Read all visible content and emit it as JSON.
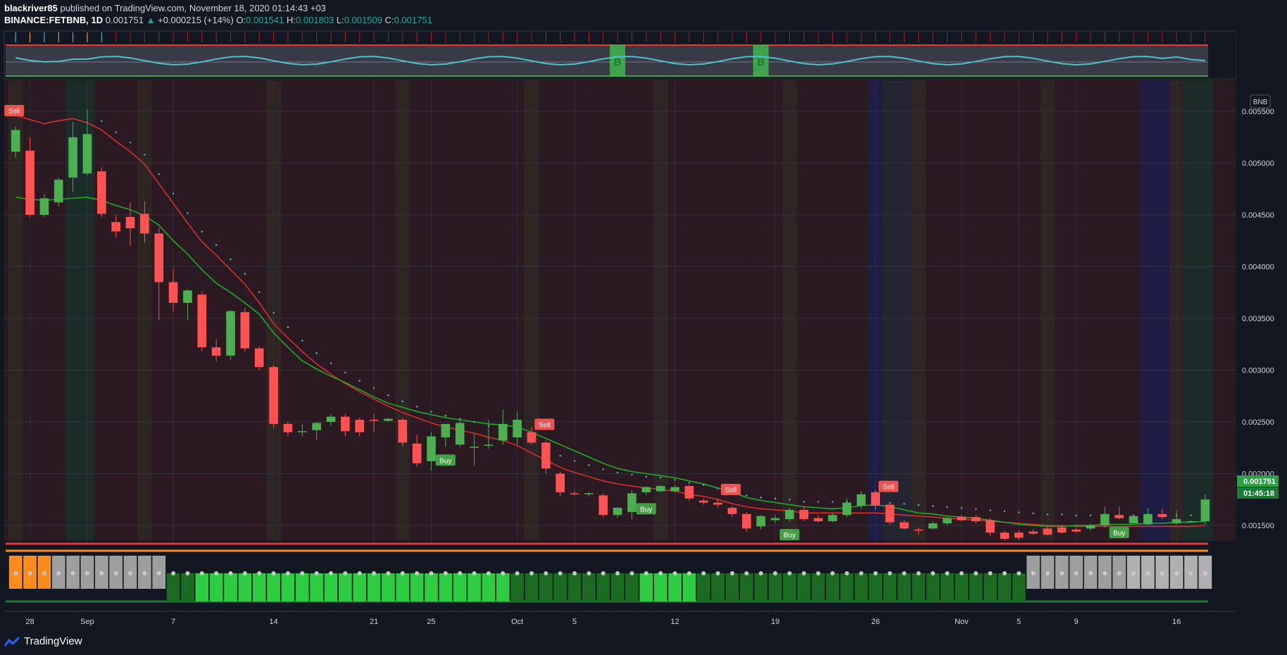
{
  "header": {
    "publisher": "blackriver85",
    "published_text": "published on TradingView.com, November 18, 2020 01:14:43 +03",
    "symbol": "BINANCE:FETBNB, 1D",
    "last": "0.001751",
    "change_arrow": "▲",
    "change": "+0.000215 (+14%)",
    "o_label": "O:",
    "o": "0.001541",
    "h_label": "H:",
    "h": "0.001803",
    "l_label": "L:",
    "l": "0.001509",
    "c_label": "C:",
    "c": "0.001751"
  },
  "currency_badge": "BNB",
  "price_label": "0.001751",
  "countdown_label": "01:45:18",
  "branding": "TradingView",
  "colors": {
    "up": "#26a69a",
    "bull_candle": "#4caf50",
    "bear_candle": "#ff5252",
    "ma_fast": "#21a82a",
    "ma_slow": "#d32f2f",
    "sell_marker": "#ef5350",
    "buy_marker": "#43a047",
    "oscillator": "#4dc3c9"
  },
  "chart_data": {
    "type": "candlestick",
    "ylim": [
      0.00135,
      0.0058
    ],
    "price_ticks": [
      "0.005500",
      "0.005000",
      "0.004500",
      "0.004000",
      "0.003500",
      "0.003000",
      "0.002500",
      "0.002000",
      "0.001500"
    ],
    "date_ticks": [
      {
        "label": "28",
        "i": 1
      },
      {
        "label": "Sep",
        "i": 5
      },
      {
        "label": "7",
        "i": 11
      },
      {
        "label": "14",
        "i": 18
      },
      {
        "label": "21",
        "i": 25
      },
      {
        "label": "25",
        "i": 29
      },
      {
        "label": "Oct",
        "i": 35
      },
      {
        "label": "5",
        "i": 39
      },
      {
        "label": "12",
        "i": 46
      },
      {
        "label": "19",
        "i": 53
      },
      {
        "label": "26",
        "i": 60
      },
      {
        "label": "Nov",
        "i": 66
      },
      {
        "label": "5",
        "i": 70
      },
      {
        "label": "9",
        "i": 74
      },
      {
        "label": "16",
        "i": 81
      }
    ],
    "candles": [
      [
        0.00511,
        0.00535,
        0.00505,
        0.00532
      ],
      [
        0.00512,
        0.00525,
        0.00448,
        0.0045
      ],
      [
        0.0045,
        0.0047,
        0.00448,
        0.00466
      ],
      [
        0.00462,
        0.00486,
        0.00458,
        0.00484
      ],
      [
        0.00486,
        0.0054,
        0.00472,
        0.00525
      ],
      [
        0.0049,
        0.00552,
        0.00488,
        0.00528
      ],
      [
        0.00492,
        0.00496,
        0.00448,
        0.00451
      ],
      [
        0.00443,
        0.0045,
        0.00428,
        0.00434
      ],
      [
        0.00448,
        0.00462,
        0.0042,
        0.00437
      ],
      [
        0.00451,
        0.00463,
        0.00423,
        0.00432
      ],
      [
        0.00432,
        0.00438,
        0.00348,
        0.00385
      ],
      [
        0.00385,
        0.00398,
        0.00357,
        0.00365
      ],
      [
        0.00365,
        0.00378,
        0.00348,
        0.00377
      ],
      [
        0.00373,
        0.00376,
        0.00318,
        0.00322
      ],
      [
        0.00322,
        0.0033,
        0.00308,
        0.00314
      ],
      [
        0.00314,
        0.00358,
        0.0031,
        0.00357
      ],
      [
        0.00356,
        0.0036,
        0.00318,
        0.00321
      ],
      [
        0.00321,
        0.00323,
        0.003,
        0.00303
      ],
      [
        0.00303,
        0.00305,
        0.00244,
        0.00248
      ],
      [
        0.00248,
        0.0025,
        0.00236,
        0.0024
      ],
      [
        0.0024,
        0.00248,
        0.00236,
        0.00241
      ],
      [
        0.00242,
        0.0025,
        0.00233,
        0.00249
      ],
      [
        0.0025,
        0.00258,
        0.00246,
        0.00255
      ],
      [
        0.00255,
        0.00258,
        0.00236,
        0.00241
      ],
      [
        0.00252,
        0.00254,
        0.00236,
        0.0024
      ],
      [
        0.00252,
        0.00258,
        0.0024,
        0.00251
      ],
      [
        0.00251,
        0.00254,
        0.0025,
        0.00253
      ],
      [
        0.00252,
        0.00254,
        0.00226,
        0.0023
      ],
      [
        0.00229,
        0.00238,
        0.00207,
        0.0021
      ],
      [
        0.00212,
        0.0024,
        0.00203,
        0.00236
      ],
      [
        0.00235,
        0.00246,
        0.00226,
        0.00248
      ],
      [
        0.00228,
        0.00253,
        0.00226,
        0.00249
      ],
      [
        0.00225,
        0.00238,
        0.00208,
        0.00226
      ],
      [
        0.00227,
        0.00252,
        0.00224,
        0.00228
      ],
      [
        0.00232,
        0.00262,
        0.00228,
        0.00248
      ],
      [
        0.00235,
        0.0026,
        0.00228,
        0.00252
      ],
      [
        0.0024,
        0.00245,
        0.00228,
        0.0023
      ],
      [
        0.0023,
        0.00232,
        0.002,
        0.00205
      ],
      [
        0.002,
        0.00202,
        0.00178,
        0.00182
      ],
      [
        0.00181,
        0.00183,
        0.00179,
        0.0018
      ],
      [
        0.0018,
        0.00182,
        0.00178,
        0.00181
      ],
      [
        0.00179,
        0.00181,
        0.00158,
        0.0016
      ],
      [
        0.0016,
        0.00168,
        0.00157,
        0.00167
      ],
      [
        0.00163,
        0.00184,
        0.00156,
        0.00181
      ],
      [
        0.00182,
        0.00188,
        0.00179,
        0.00187
      ],
      [
        0.00183,
        0.00189,
        0.00182,
        0.00188
      ],
      [
        0.00183,
        0.00189,
        0.00182,
        0.00187
      ],
      [
        0.00188,
        0.00189,
        0.00174,
        0.00176
      ],
      [
        0.00174,
        0.00176,
        0.0017,
        0.00172
      ],
      [
        0.00172,
        0.00176,
        0.00167,
        0.0017
      ],
      [
        0.00167,
        0.00169,
        0.00158,
        0.00161
      ],
      [
        0.00161,
        0.00163,
        0.00144,
        0.00147
      ],
      [
        0.00149,
        0.0016,
        0.00146,
        0.00159
      ],
      [
        0.00155,
        0.0016,
        0.00152,
        0.00157
      ],
      [
        0.00156,
        0.00167,
        0.00154,
        0.00165
      ],
      [
        0.00165,
        0.00168,
        0.00154,
        0.00156
      ],
      [
        0.00157,
        0.0016,
        0.00153,
        0.00154
      ],
      [
        0.00154,
        0.00162,
        0.00153,
        0.0016
      ],
      [
        0.0016,
        0.00176,
        0.00158,
        0.00172
      ],
      [
        0.00169,
        0.00183,
        0.00166,
        0.0018
      ],
      [
        0.00182,
        0.00184,
        0.00165,
        0.00169
      ],
      [
        0.0017,
        0.00172,
        0.0015,
        0.00153
      ],
      [
        0.00153,
        0.00155,
        0.00146,
        0.00147
      ],
      [
        0.00146,
        0.00148,
        0.00141,
        0.00145
      ],
      [
        0.00147,
        0.00154,
        0.00146,
        0.00152
      ],
      [
        0.00152,
        0.00158,
        0.0015,
        0.00157
      ],
      [
        0.00158,
        0.0016,
        0.00154,
        0.00155
      ],
      [
        0.00158,
        0.0016,
        0.00152,
        0.00154
      ],
      [
        0.00155,
        0.00157,
        0.0014,
        0.00143
      ],
      [
        0.00143,
        0.00145,
        0.00135,
        0.00137
      ],
      [
        0.00143,
        0.00145,
        0.00136,
        0.00138
      ],
      [
        0.00144,
        0.00146,
        0.00141,
        0.00142
      ],
      [
        0.00147,
        0.00149,
        0.0014,
        0.00141
      ],
      [
        0.00148,
        0.0015,
        0.00142,
        0.00143
      ],
      [
        0.00146,
        0.00148,
        0.00143,
        0.00144
      ],
      [
        0.00147,
        0.00152,
        0.00145,
        0.0015
      ],
      [
        0.0015,
        0.00168,
        0.00148,
        0.00161
      ],
      [
        0.0016,
        0.00168,
        0.00156,
        0.00157
      ],
      [
        0.00152,
        0.0016,
        0.00151,
        0.00159
      ],
      [
        0.00151,
        0.00167,
        0.0015,
        0.00161
      ],
      [
        0.00161,
        0.00166,
        0.00156,
        0.00158
      ],
      [
        0.00152,
        0.00164,
        0.00151,
        0.00156
      ],
      [
        0.00154,
        0.00155,
        0.00153,
        0.00154
      ],
      [
        0.00154,
        0.0018,
        0.00151,
        0.00175
      ]
    ],
    "ma_slow": [
      0.00546,
      0.00542,
      0.00538,
      0.00541,
      0.00543,
      0.00539,
      0.00532,
      0.00521,
      0.00511,
      0.00499,
      0.0048,
      0.00461,
      0.00442,
      0.00424,
      0.00411,
      0.00397,
      0.00383,
      0.00365,
      0.00345,
      0.00331,
      0.00318,
      0.00306,
      0.00296,
      0.00287,
      0.00279,
      0.00272,
      0.00265,
      0.00259,
      0.00254,
      0.00249,
      0.00245,
      0.00242,
      0.00239,
      0.00235,
      0.00232,
      0.00227,
      0.0022,
      0.00213,
      0.00206,
      0.00201,
      0.00197,
      0.00193,
      0.0019,
      0.00188,
      0.00186,
      0.00185,
      0.00183,
      0.0018,
      0.00178,
      0.00175,
      0.00171,
      0.00168,
      0.00166,
      0.00165,
      0.00164,
      0.00162,
      0.00162,
      0.00162,
      0.00162,
      0.00162,
      0.00162,
      0.00161,
      0.0016,
      0.00159,
      0.00158,
      0.00157,
      0.00156,
      0.00155,
      0.00154,
      0.00153,
      0.00152,
      0.00151,
      0.0015,
      0.0015,
      0.00149,
      0.00149,
      0.00149,
      0.00149,
      0.00149,
      0.00149,
      0.00149,
      0.00149,
      0.00149,
      0.0015
    ],
    "ma_fast": [
      0.00467,
      0.00465,
      0.00464,
      0.00465,
      0.00466,
      0.00467,
      0.00464,
      0.00459,
      0.00455,
      0.00449,
      0.0044,
      0.00425,
      0.00412,
      0.00397,
      0.00384,
      0.00375,
      0.00365,
      0.00354,
      0.00336,
      0.00322,
      0.00309,
      0.00301,
      0.00294,
      0.00288,
      0.00281,
      0.00274,
      0.00268,
      0.00264,
      0.0026,
      0.00257,
      0.00254,
      0.00252,
      0.0025,
      0.00248,
      0.00247,
      0.00245,
      0.0024,
      0.00234,
      0.00228,
      0.00222,
      0.00216,
      0.0021,
      0.00205,
      0.00202,
      0.002,
      0.00198,
      0.00196,
      0.00193,
      0.0019,
      0.00186,
      0.00182,
      0.00177,
      0.00174,
      0.00172,
      0.0017,
      0.00168,
      0.00167,
      0.00166,
      0.00167,
      0.00169,
      0.0017,
      0.00168,
      0.00165,
      0.00162,
      0.00161,
      0.00159,
      0.00158,
      0.00157,
      0.00155,
      0.00153,
      0.00151,
      0.0015,
      0.00149,
      0.00149,
      0.0015,
      0.0015,
      0.00151,
      0.00151,
      0.00151,
      0.00152,
      0.00152,
      0.00153,
      0.00153,
      0.00154
    ],
    "sell_signals": [
      0,
      37,
      50,
      61
    ],
    "buy_signals": [
      30,
      44,
      54,
      77
    ],
    "osc_ticks": [
      "0",
      "50"
    ],
    "osc_markers": [
      {
        "label": "B",
        "i": 42
      },
      {
        "label": "B",
        "i": 52
      }
    ],
    "bottom_ticks": [
      "100.0",
      "0.0",
      "−100.0"
    ]
  }
}
